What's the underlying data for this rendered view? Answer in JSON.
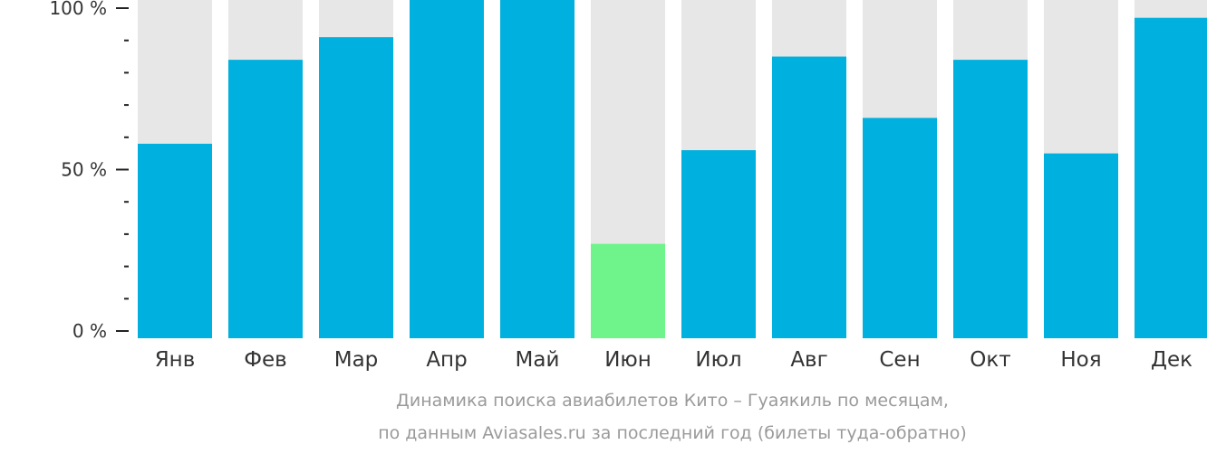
{
  "colors": {
    "bar": "#00b0de",
    "bar_highlight": "#6ef48a",
    "bar_background": "#e7e7e7",
    "axis": "#222222",
    "tick_text": "#333333",
    "caption_text": "#9a9a9a"
  },
  "chart_data": {
    "type": "bar",
    "categories": [
      "Янв",
      "Фев",
      "Мар",
      "Апр",
      "Май",
      "Июн",
      "Июл",
      "Авг",
      "Сен",
      "Окт",
      "Ноя",
      "Дек"
    ],
    "values": [
      58,
      84,
      91,
      105,
      105,
      27,
      56,
      85,
      66,
      84,
      55,
      97
    ],
    "highlight_index": 5,
    "ylim": [
      0,
      100
    ],
    "yticks": [
      0,
      50,
      100
    ],
    "ytick_labels": [
      "0 %",
      "50 %",
      "100 %"
    ],
    "y_minor_ticks": [
      10,
      20,
      30,
      40,
      60,
      70,
      80,
      90
    ],
    "title": "",
    "xlabel": "",
    "ylabel": "",
    "caption_line1": "Динамика поиска авиабилетов Кито – Гуаякиль по месяцам,",
    "caption_line2": "по данным Aviasales.ru за последний год (билеты туда-обратно)"
  }
}
